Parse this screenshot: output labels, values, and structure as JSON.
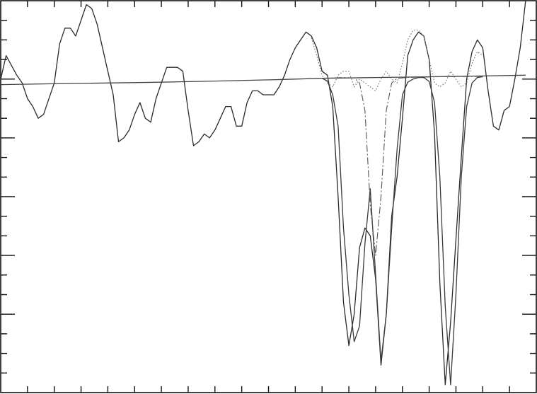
{
  "colors": {
    "background": "#ffffff",
    "frame": "#111111",
    "data_line": "#2a2a2a",
    "fit_line": "#3a3a3a",
    "component_line": "#555555",
    "dotted_line": "#6a6a6a",
    "continuum_line": "#444444"
  },
  "chart_data": {
    "type": "line",
    "title": "",
    "xlabel": "",
    "ylabel": "",
    "grid": false,
    "legend": "none",
    "xlim": [
      0,
      100
    ],
    "ylim": [
      0,
      100
    ],
    "x_minor_ticks": [
      5,
      10,
      15,
      20,
      25,
      30,
      35,
      40,
      45,
      50,
      55,
      60,
      65,
      70,
      75,
      80,
      85,
      90,
      95
    ],
    "y_major_ticks": [
      20,
      35,
      50,
      65,
      80
    ],
    "y_minor_ticks": [
      5,
      10,
      15,
      25,
      30,
      40,
      45,
      55,
      60,
      70,
      75,
      85,
      90,
      95
    ],
    "series": [
      {
        "style": "solid",
        "points": [
          [
            0,
            80
          ],
          [
            1,
            86
          ],
          [
            3,
            81
          ],
          [
            4,
            79
          ],
          [
            5,
            75
          ],
          [
            6,
            73
          ],
          [
            7,
            70
          ],
          [
            8,
            71
          ],
          [
            10,
            79
          ],
          [
            11,
            89
          ],
          [
            12,
            93
          ],
          [
            13,
            93
          ],
          [
            14,
            91
          ],
          [
            16,
            99
          ],
          [
            17,
            98
          ],
          [
            18,
            94
          ],
          [
            20,
            82
          ],
          [
            21,
            76
          ],
          [
            22,
            64
          ],
          [
            23,
            65
          ],
          [
            24,
            67
          ],
          [
            25,
            71
          ],
          [
            26,
            74
          ],
          [
            27,
            70
          ],
          [
            28,
            69
          ],
          [
            29,
            75
          ],
          [
            30,
            79
          ],
          [
            31,
            83
          ],
          [
            33,
            83
          ],
          [
            34,
            82
          ],
          [
            35,
            72
          ],
          [
            36,
            63
          ],
          [
            37,
            64
          ],
          [
            38,
            66
          ],
          [
            39,
            65
          ],
          [
            40,
            67
          ],
          [
            41,
            70
          ],
          [
            42,
            73
          ],
          [
            43,
            73
          ],
          [
            44,
            68
          ],
          [
            45,
            68
          ],
          [
            46,
            74
          ],
          [
            47,
            77
          ],
          [
            48,
            77
          ],
          [
            49,
            76
          ],
          [
            50,
            76
          ],
          [
            51,
            76
          ],
          [
            52,
            78
          ],
          [
            53,
            81
          ],
          [
            54,
            85
          ],
          [
            55,
            88
          ],
          [
            56,
            90
          ],
          [
            57,
            92
          ],
          [
            58,
            91
          ],
          [
            59,
            88
          ],
          [
            60,
            82
          ],
          [
            61,
            81
          ],
          [
            62,
            73
          ],
          [
            63,
            50
          ],
          [
            64,
            23
          ],
          [
            65,
            12
          ],
          [
            66,
            20
          ],
          [
            67,
            37
          ],
          [
            68,
            42
          ],
          [
            69,
            40
          ],
          [
            70,
            29
          ],
          [
            71,
            7
          ],
          [
            72,
            20
          ],
          [
            73,
            45
          ],
          [
            74,
            55
          ],
          [
            75,
            70
          ],
          [
            76,
            86
          ],
          [
            77,
            90
          ],
          [
            78,
            92
          ],
          [
            79,
            91
          ],
          [
            80,
            85
          ],
          [
            81,
            66
          ],
          [
            82,
            28
          ],
          [
            83,
            2
          ],
          [
            84,
            18
          ],
          [
            85,
            39
          ],
          [
            86,
            60
          ],
          [
            87,
            80
          ],
          [
            88,
            87
          ],
          [
            89,
            90
          ],
          [
            90,
            88
          ],
          [
            91,
            77
          ],
          [
            92,
            68
          ],
          [
            93,
            67
          ],
          [
            94,
            72
          ],
          [
            95,
            73
          ],
          [
            96,
            80
          ],
          [
            97,
            88
          ],
          [
            98,
            100
          ]
        ]
      },
      {
        "style": "solid",
        "points": [
          [
            0,
            78.6
          ],
          [
            10,
            78.8
          ],
          [
            20,
            79.0
          ],
          [
            30,
            79.2
          ],
          [
            40,
            79.5
          ],
          [
            50,
            79.8
          ],
          [
            55,
            80.0
          ],
          [
            60,
            80.2
          ],
          [
            70,
            80.4
          ],
          [
            80,
            80.6
          ],
          [
            90,
            80.8
          ],
          [
            98,
            81
          ]
        ]
      },
      {
        "style": "solid",
        "points": [
          [
            60,
            80.2
          ],
          [
            61,
            79.5
          ],
          [
            62,
            76
          ],
          [
            63,
            68
          ],
          [
            64,
            42
          ],
          [
            65,
            25
          ],
          [
            66,
            13
          ],
          [
            67,
            17
          ],
          [
            68,
            38
          ],
          [
            69,
            52
          ],
          [
            70,
            30
          ],
          [
            71,
            8
          ],
          [
            72,
            20
          ],
          [
            73,
            42
          ],
          [
            74,
            62
          ],
          [
            75,
            76
          ],
          [
            76,
            79.2
          ],
          [
            77,
            80
          ],
          [
            78,
            80.4
          ],
          [
            79,
            80.4
          ],
          [
            80,
            79.4
          ],
          [
            81,
            74
          ],
          [
            82,
            55
          ],
          [
            83,
            22
          ],
          [
            84,
            2
          ],
          [
            85,
            25
          ],
          [
            86,
            55
          ],
          [
            87,
            73
          ],
          [
            88,
            79
          ],
          [
            89,
            80.4
          ],
          [
            90,
            80.6
          ]
        ]
      },
      {
        "style": "dashdot",
        "points": [
          [
            60,
            80.2
          ],
          [
            62,
            80.3
          ],
          [
            64,
            80.4
          ],
          [
            66,
            80.3
          ],
          [
            67,
            79
          ],
          [
            68,
            72
          ],
          [
            69,
            48
          ],
          [
            70,
            35
          ],
          [
            71,
            50
          ],
          [
            72,
            72
          ],
          [
            73,
            79
          ],
          [
            74,
            80.2
          ],
          [
            76,
            80.4
          ],
          [
            82,
            80.6
          ],
          [
            90,
            80.7
          ]
        ]
      },
      {
        "style": "dotted",
        "points": [
          [
            58,
            90.5
          ],
          [
            59,
            86
          ],
          [
            60,
            81
          ],
          [
            61,
            79
          ],
          [
            62,
            78
          ],
          [
            63,
            81
          ],
          [
            64,
            82
          ],
          [
            65,
            82
          ],
          [
            66,
            78
          ],
          [
            67,
            80
          ],
          [
            68,
            79
          ],
          [
            69,
            78
          ],
          [
            70,
            77
          ],
          [
            71,
            80
          ],
          [
            72,
            82
          ],
          [
            73,
            80
          ],
          [
            74,
            79
          ],
          [
            75,
            84
          ],
          [
            76,
            90
          ],
          [
            77,
            92.5
          ],
          [
            78,
            92.5
          ],
          [
            79,
            91
          ],
          [
            80,
            85
          ],
          [
            81,
            79
          ],
          [
            82,
            78
          ],
          [
            83,
            79
          ],
          [
            84,
            82
          ],
          [
            85,
            80
          ],
          [
            86,
            78
          ],
          [
            87,
            79
          ],
          [
            88,
            84
          ],
          [
            89,
            87
          ],
          [
            90,
            86
          ]
        ]
      }
    ]
  }
}
